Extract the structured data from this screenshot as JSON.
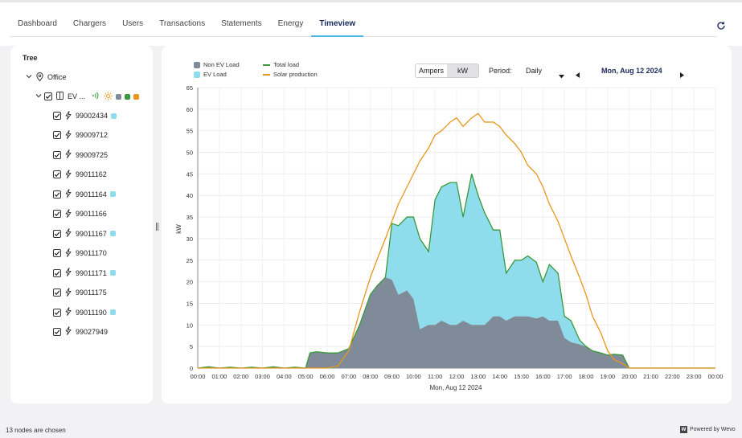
{
  "nav": {
    "tabs": [
      {
        "label": "Dashboard"
      },
      {
        "label": "Chargers"
      },
      {
        "label": "Users"
      },
      {
        "label": "Transactions"
      },
      {
        "label": "Statements"
      },
      {
        "label": "Energy"
      },
      {
        "label": "Timeview"
      }
    ],
    "active_tab": "Timeview"
  },
  "tree": {
    "title": "Tree",
    "root": "Office",
    "group": "EV ...",
    "chargers": [
      {
        "id": "99002434",
        "badge": true
      },
      {
        "id": "99009712",
        "badge": false
      },
      {
        "id": "99009725",
        "badge": false
      },
      {
        "id": "99011162",
        "badge": false
      },
      {
        "id": "99011164",
        "badge": true
      },
      {
        "id": "99011166",
        "badge": false
      },
      {
        "id": "99011167",
        "badge": true
      },
      {
        "id": "99011170",
        "badge": false
      },
      {
        "id": "99011171",
        "badge": true
      },
      {
        "id": "99011175",
        "badge": false
      },
      {
        "id": "99011190",
        "badge": true
      },
      {
        "id": "99027949",
        "badge": false
      }
    ]
  },
  "controls": {
    "unit_options": [
      "Ampers",
      "kW"
    ],
    "unit_selected": "kW",
    "period_label": "Period:",
    "period_value": "Daily",
    "date": "Mon, Aug 12 2024"
  },
  "status": {
    "nodes_chosen": "13 nodes are chosen",
    "powered_by": "Powered by Wevo",
    "logo_letter": "W"
  },
  "colors": {
    "non_ev": "#7f8b98",
    "ev": "#8fdcec",
    "total": "#3a9a3a",
    "solar": "#e8961c",
    "accent": "#4fb8df",
    "badge": "#8fdcec"
  },
  "chart_data": {
    "type": "area",
    "xlabel": "Mon, Aug 12 2024",
    "ylabel": "kW",
    "ylim": [
      0,
      65
    ],
    "yticks": [
      0,
      5,
      10,
      15,
      20,
      25,
      30,
      35,
      40,
      45,
      50,
      55,
      60,
      65
    ],
    "xticks": [
      "00:00",
      "01:00",
      "02:00",
      "03:00",
      "04:00",
      "05:00",
      "06:00",
      "07:00",
      "08:00",
      "09:00",
      "10:00",
      "11:00",
      "12:00",
      "13:00",
      "14:00",
      "15:00",
      "16:00",
      "17:00",
      "18:00",
      "19:00",
      "20:00",
      "21:00",
      "22:00",
      "23:00",
      "00:00"
    ],
    "x_hours": [
      0,
      0.5,
      1,
      1.5,
      2,
      2.5,
      3,
      3.5,
      4,
      4.5,
      5,
      5.2,
      5.5,
      6,
      6.5,
      7,
      7.5,
      8,
      8.3,
      8.7,
      9,
      9.3,
      9.7,
      10,
      10.3,
      10.7,
      11,
      11.3,
      11.7,
      12,
      12.3,
      12.7,
      13,
      13.3,
      13.7,
      14,
      14.3,
      14.7,
      15,
      15.3,
      15.7,
      16,
      16.3,
      16.7,
      17,
      17.3,
      17.7,
      18,
      18.3,
      18.7,
      19,
      19.3,
      19.7,
      20,
      20.5,
      21,
      21.5,
      22,
      22.5,
      23,
      23.5,
      24
    ],
    "series": [
      {
        "name": "Non EV Load",
        "values": [
          0,
          0.3,
          0,
          0.2,
          0,
          0.2,
          0,
          0.3,
          0,
          0.2,
          0,
          3.5,
          3.8,
          3.5,
          3.5,
          4.5,
          10,
          17,
          19,
          21,
          20.5,
          17,
          18,
          16,
          9,
          10,
          10,
          11,
          10,
          10,
          11,
          10,
          10,
          10,
          12,
          12,
          11,
          12,
          12,
          12,
          11.5,
          12,
          11,
          11,
          7,
          6,
          5.5,
          5,
          4,
          3.5,
          3,
          3.2,
          3,
          0,
          0,
          0,
          0,
          0,
          0,
          0,
          0,
          0
        ]
      },
      {
        "name": "EV Load",
        "values": [
          0,
          0,
          0,
          0,
          0,
          0,
          0,
          0,
          0,
          0,
          0,
          0,
          0,
          0,
          0,
          0,
          0,
          0,
          0,
          0,
          13,
          16,
          17,
          19,
          21,
          17,
          29,
          31,
          33,
          33,
          24,
          35,
          30,
          26,
          20,
          20,
          11,
          13,
          13,
          14,
          13,
          8,
          13,
          11,
          5,
          5,
          1,
          0,
          0,
          0,
          0,
          0,
          0,
          0,
          0,
          0,
          0,
          0,
          0,
          0,
          0,
          0
        ]
      },
      {
        "name": "Total load",
        "values": [
          0,
          0.3,
          0,
          0.2,
          0,
          0.2,
          0,
          0.3,
          0,
          0.2,
          0,
          3.5,
          3.8,
          3.5,
          3.5,
          4.5,
          10,
          17,
          19,
          21,
          33.5,
          33,
          35,
          35,
          30,
          27,
          39,
          42,
          43,
          43,
          35,
          45,
          40,
          36,
          32,
          32,
          22,
          25,
          25,
          26,
          24.5,
          20,
          24,
          22,
          12,
          11,
          6.5,
          5,
          4,
          3.5,
          3,
          3.2,
          3,
          0,
          0,
          0,
          0,
          0,
          0,
          0,
          0,
          0
        ]
      },
      {
        "name": "Solar production",
        "values": [
          0,
          0,
          0,
          0,
          0,
          0,
          0,
          0,
          0,
          0,
          0,
          0,
          0,
          0,
          0.5,
          4,
          13,
          21,
          25,
          30,
          34,
          38,
          42,
          45,
          48,
          51,
          54,
          55,
          57,
          58,
          56,
          58,
          59,
          57,
          57,
          56,
          54,
          52,
          50,
          47,
          45,
          42,
          38,
          34,
          30,
          26,
          21,
          17,
          12,
          8,
          4,
          2,
          1,
          0,
          0,
          0,
          0,
          0,
          0,
          0,
          0,
          0
        ]
      }
    ],
    "legend": [
      "Non EV Load",
      "Total load",
      "EV Load",
      "Solar production"
    ],
    "grid": true,
    "legend_position": "top-left"
  }
}
